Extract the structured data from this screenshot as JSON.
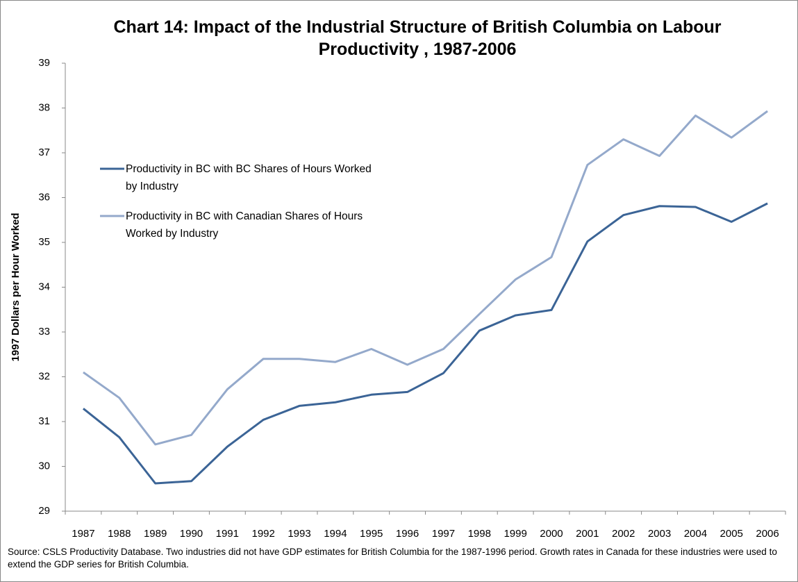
{
  "chart_data": {
    "type": "line",
    "title": "Chart 14: Impact of the Industrial Structure of British Columbia on Labour Productivity , 1987-2006",
    "ylabel": "1997 Dollars per Hour Worked",
    "note": "Source: CSLS Productivity Database.  Two industries did not have GDP estimates for British Columbia for the 1987-1996  period.  Growth rates in Canada for these industries were used to extend the GDP series for British Columbia.",
    "categories": [
      "1987",
      "1988",
      "1989",
      "1990",
      "1991",
      "1992",
      "1993",
      "1994",
      "1995",
      "1996",
      "1997",
      "1998",
      "1999",
      "2000",
      "2001",
      "2002",
      "2003",
      "2004",
      "2005",
      "2006"
    ],
    "series": [
      {
        "name": "Productivity in BC with BC Shares of Hours Worked by Industry",
        "color": "#3b6496",
        "values": [
          31.29,
          30.65,
          29.62,
          29.67,
          30.44,
          31.04,
          31.35,
          31.43,
          31.6,
          31.66,
          32.08,
          33.03,
          33.37,
          33.49,
          35.02,
          35.61,
          35.81,
          35.79,
          35.46,
          35.87
        ]
      },
      {
        "name": "Productivity in BC with Canadian Shares of Hours Worked by Industry",
        "color": "#94a9cb",
        "values": [
          32.1,
          31.53,
          30.49,
          30.7,
          31.72,
          32.4,
          32.4,
          32.33,
          32.62,
          32.27,
          32.62,
          33.4,
          34.17,
          34.67,
          36.73,
          37.3,
          36.93,
          37.83,
          37.34,
          37.93
        ]
      }
    ],
    "ylim": [
      29,
      39
    ],
    "yticks": [
      29,
      30,
      31,
      32,
      33,
      34,
      35,
      36,
      37,
      38,
      39
    ],
    "grid": false,
    "legend": "upper left"
  }
}
